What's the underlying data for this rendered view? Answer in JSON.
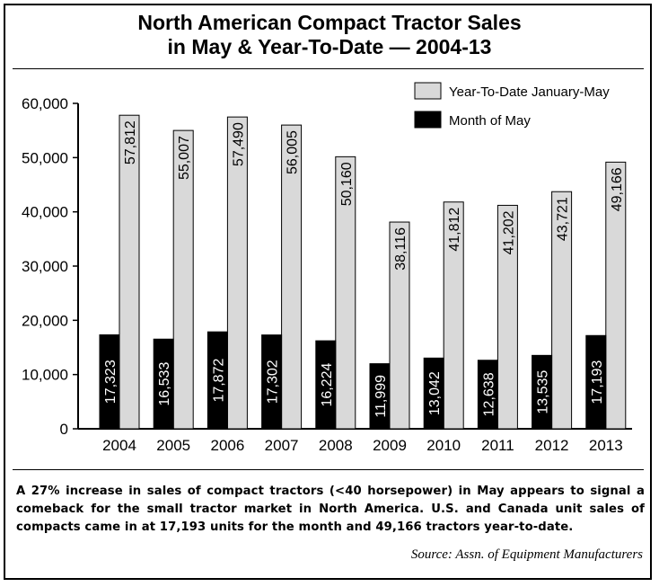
{
  "chart_data": {
    "type": "bar",
    "title": "North American Compact Tractor Sales in May & Year-To-Date — 2004-13",
    "title_lines": [
      "North American Compact Tractor Sales",
      "in May & Year-To-Date — 2004-13"
    ],
    "categories": [
      "2004",
      "2005",
      "2006",
      "2007",
      "2008",
      "2009",
      "2010",
      "2011",
      "2012",
      "2013"
    ],
    "series": [
      {
        "name": "Month of May",
        "color": "#000000",
        "values": [
          17323,
          16533,
          17872,
          17302,
          16224,
          11999,
          13042,
          12638,
          13535,
          17193
        ],
        "labels": [
          "17,323",
          "16,533",
          "17,872",
          "17,302",
          "16,224",
          "11,999",
          "13,042",
          "12,638",
          "13,535",
          "17,193"
        ]
      },
      {
        "name": "Year-To-Date January-May",
        "color": "#d9d9d9",
        "values": [
          57812,
          55007,
          57490,
          56005,
          50160,
          38116,
          41812,
          41202,
          43721,
          49166
        ],
        "labels": [
          "57,812",
          "55,007",
          "57,490",
          "56,005",
          "50,160",
          "38,116",
          "41,812",
          "41,202",
          "43,721",
          "49,166"
        ]
      }
    ],
    "ylim": [
      0,
      60000
    ],
    "yticks": [
      0,
      10000,
      20000,
      30000,
      40000,
      50000,
      60000
    ],
    "ytick_labels": [
      "0",
      "10,000",
      "20,000",
      "30,000",
      "40,000",
      "50,000",
      "60,000"
    ],
    "grid": false,
    "legend_position": "top-right",
    "legend_order": [
      "Year-To-Date January-May",
      "Month of May"
    ]
  },
  "caption": "A 27% increase in sales of compact tractors (<40 horsepower) in May appears to signal a comeback for the small tractor market in North America. U.S. and Canada unit sales of compacts came in at 17,193 units for the month and 49,166 tractors year-to-date.",
  "source": "Source: Assn. of Equipment Manufacturers"
}
